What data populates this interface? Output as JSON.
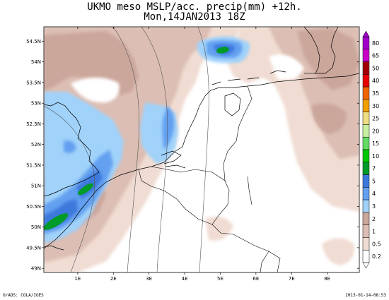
{
  "title_line1": "UKMO meso MSLP/acc. precip(mm) +12h.",
  "title_line2": "Mon,14JAN2013 18Z",
  "footer_left": "GrADS: COLA/IGES",
  "footer_right": "2013-01-14-08:53",
  "axes": {
    "lon_ticks": [
      {
        "value": 1,
        "label": "1E"
      },
      {
        "value": 2,
        "label": "2E"
      },
      {
        "value": 3,
        "label": "3E"
      },
      {
        "value": 4,
        "label": "4E"
      },
      {
        "value": 5,
        "label": "5E"
      },
      {
        "value": 6,
        "label": "6E"
      },
      {
        "value": 7,
        "label": "7E"
      },
      {
        "value": 8,
        "label": "8E"
      }
    ],
    "lat_ticks": [
      {
        "value": 49,
        "label": "49N"
      },
      {
        "value": 49.5,
        "label": "49.5N"
      },
      {
        "value": 50,
        "label": "50N"
      },
      {
        "value": 50.5,
        "label": "50.5N"
      },
      {
        "value": 51,
        "label": "51N"
      },
      {
        "value": 51.5,
        "label": "51.5N"
      },
      {
        "value": 52,
        "label": "52N"
      },
      {
        "value": 52.5,
        "label": "52.5N"
      },
      {
        "value": 53,
        "label": "53N"
      },
      {
        "value": 53.5,
        "label": "53.5N"
      },
      {
        "value": 54,
        "label": "54N"
      },
      {
        "value": 54.5,
        "label": "54.5N"
      }
    ],
    "lon_range": [
      0.05,
      8.9
    ],
    "lat_range": [
      48.9,
      54.85
    ]
  },
  "colorbar": {
    "levels": [
      {
        "label": "80",
        "color": "#a000c8"
      },
      {
        "label": "65",
        "color": "#c800c8"
      },
      {
        "label": "50",
        "color": "#a00000"
      },
      {
        "label": "40",
        "color": "#e60000"
      },
      {
        "label": "35",
        "color": "#f06400"
      },
      {
        "label": "30",
        "color": "#f0a000"
      },
      {
        "label": "25",
        "color": "#f0dc82"
      },
      {
        "label": "20",
        "color": "#c8f0a0"
      },
      {
        "label": "15",
        "color": "#64dc64"
      },
      {
        "label": "10",
        "color": "#00c800"
      },
      {
        "label": "7",
        "color": "#009b28"
      },
      {
        "label": "5",
        "color": "#3c78dc"
      },
      {
        "label": "4",
        "color": "#64a0f0"
      },
      {
        "label": "3",
        "color": "#a0d2fa"
      },
      {
        "label": "2",
        "color": "#cba69b"
      },
      {
        "label": "1",
        "color": "#dcbeb4"
      },
      {
        "label": "0.5",
        "color": "#f0dcd2"
      },
      {
        "label": "0.2",
        "color": "#ffffff"
      }
    ]
  }
}
